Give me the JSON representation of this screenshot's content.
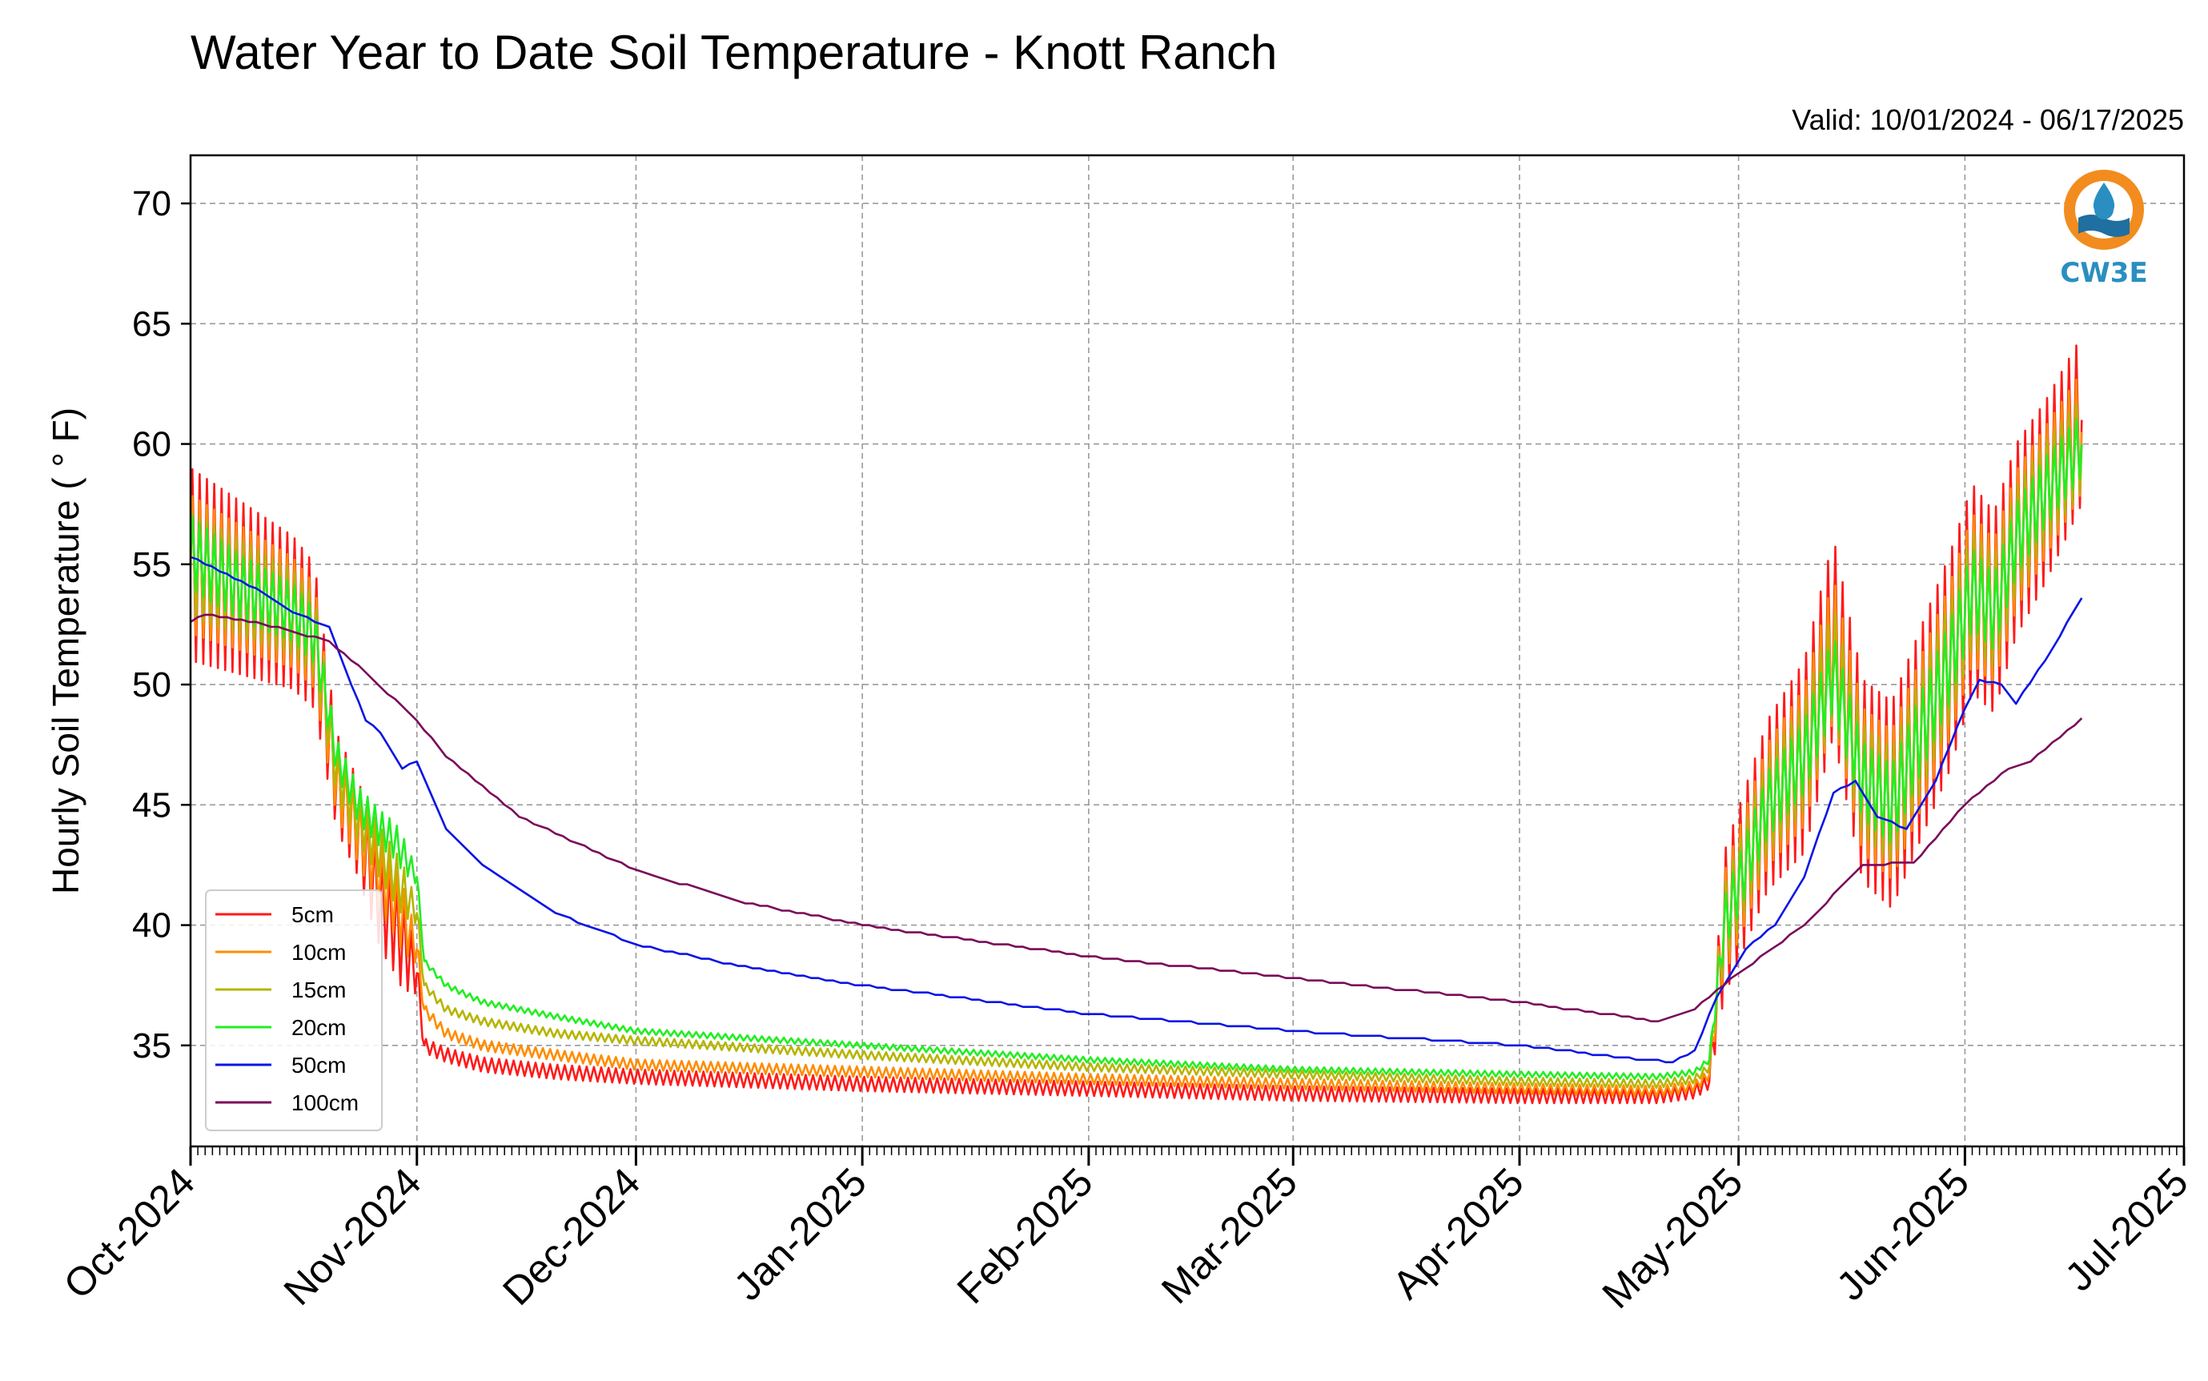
{
  "chart_data": {
    "type": "line",
    "title": "Water Year to Date Soil Temperature - Knott Ranch",
    "subtitle": "Valid: 10/01/2024 - 06/17/2025",
    "xlabel": "",
    "ylabel": "Hourly Soil Temperature ( ° F)",
    "ylim": [
      30.8,
      72
    ],
    "xlim": [
      "2024-10-01",
      "2025-07-01"
    ],
    "y_ticks": [
      35,
      40,
      45,
      50,
      55,
      60,
      65,
      70
    ],
    "x_ticks": [
      {
        "date": "2024-10-01",
        "label": "Oct-2024"
      },
      {
        "date": "2024-11-01",
        "label": "Nov-2024"
      },
      {
        "date": "2024-12-01",
        "label": "Dec-2024"
      },
      {
        "date": "2025-01-01",
        "label": "Jan-2025"
      },
      {
        "date": "2025-02-01",
        "label": "Feb-2025"
      },
      {
        "date": "2025-03-01",
        "label": "Mar-2025"
      },
      {
        "date": "2025-04-01",
        "label": "Apr-2025"
      },
      {
        "date": "2025-05-01",
        "label": "May-2025"
      },
      {
        "date": "2025-06-01",
        "label": "Jun-2025"
      },
      {
        "date": "2025-07-01",
        "label": "Jul-2025"
      }
    ],
    "grid": true,
    "legend_position": "lower-left",
    "logo_text": "CW3E",
    "series": [
      {
        "name": "5cm",
        "color": "#ff1a1a",
        "amp_scale": 1.0,
        "points": [
          [
            "2024-10-01",
            55
          ],
          [
            "2024-10-08",
            54
          ],
          [
            "2024-10-15",
            53
          ],
          [
            "2024-10-18",
            52
          ],
          [
            "2024-10-21",
            46
          ],
          [
            "2024-10-24",
            44
          ],
          [
            "2024-10-27",
            41
          ],
          [
            "2024-10-29",
            40
          ],
          [
            "2024-11-01",
            38
          ],
          [
            "2024-11-02",
            35
          ],
          [
            "2024-11-05",
            34.6
          ],
          [
            "2024-11-10",
            34.2
          ],
          [
            "2024-11-20",
            33.9
          ],
          [
            "2024-12-01",
            33.7
          ],
          [
            "2025-01-01",
            33.4
          ],
          [
            "2025-02-01",
            33.2
          ],
          [
            "2025-03-01",
            33.0
          ],
          [
            "2025-04-01",
            32.9
          ],
          [
            "2025-04-20",
            32.9
          ],
          [
            "2025-04-25",
            33.1
          ],
          [
            "2025-04-27",
            33.5
          ],
          [
            "2025-04-29",
            40
          ],
          [
            "2025-05-05",
            45
          ],
          [
            "2025-05-10",
            47
          ],
          [
            "2025-05-14",
            52
          ],
          [
            "2025-05-18",
            46
          ],
          [
            "2025-05-22",
            45
          ],
          [
            "2025-05-26",
            48
          ],
          [
            "2025-05-30",
            51
          ],
          [
            "2025-06-02",
            54
          ],
          [
            "2025-06-05",
            53
          ],
          [
            "2025-06-08",
            56
          ],
          [
            "2025-06-12",
            58
          ],
          [
            "2025-06-17",
            61
          ]
        ],
        "amp": [
          [
            "2024-10-01",
            8
          ],
          [
            "2024-10-18",
            6
          ],
          [
            "2024-10-21",
            4
          ],
          [
            "2024-10-30",
            4
          ],
          [
            "2024-11-02",
            0.6
          ],
          [
            "2025-04-27",
            0.6
          ],
          [
            "2025-04-29",
            6
          ],
          [
            "2025-05-10",
            8
          ],
          [
            "2025-05-30",
            9
          ],
          [
            "2025-06-17",
            7
          ]
        ]
      },
      {
        "name": "10cm",
        "color": "#ff8c00",
        "amp_scale": 0.72,
        "points": [
          [
            "2024-10-01",
            55
          ],
          [
            "2024-10-08",
            54
          ],
          [
            "2024-10-15",
            53
          ],
          [
            "2024-10-18",
            52
          ],
          [
            "2024-10-21",
            46
          ],
          [
            "2024-10-24",
            44
          ],
          [
            "2024-10-27",
            42
          ],
          [
            "2024-10-29",
            41
          ],
          [
            "2024-11-01",
            39
          ],
          [
            "2024-11-02",
            36.5
          ],
          [
            "2024-11-05",
            35.5
          ],
          [
            "2024-11-10",
            35
          ],
          [
            "2024-11-20",
            34.6
          ],
          [
            "2024-12-01",
            34.2
          ],
          [
            "2025-01-01",
            33.9
          ],
          [
            "2025-02-01",
            33.6
          ],
          [
            "2025-03-01",
            33.4
          ],
          [
            "2025-04-01",
            33.2
          ],
          [
            "2025-04-20",
            33.1
          ],
          [
            "2025-04-25",
            33.3
          ],
          [
            "2025-04-27",
            33.8
          ],
          [
            "2025-04-29",
            40
          ],
          [
            "2025-05-05",
            45
          ],
          [
            "2025-05-10",
            47
          ],
          [
            "2025-05-14",
            51.5
          ],
          [
            "2025-05-18",
            46
          ],
          [
            "2025-05-22",
            45
          ],
          [
            "2025-05-26",
            48
          ],
          [
            "2025-05-30",
            51
          ],
          [
            "2025-06-02",
            54
          ],
          [
            "2025-06-05",
            53
          ],
          [
            "2025-06-08",
            56
          ],
          [
            "2025-06-12",
            58
          ],
          [
            "2025-06-17",
            60.5
          ]
        ],
        "amp": [
          [
            "2024-10-01",
            8
          ],
          [
            "2024-10-18",
            6
          ],
          [
            "2024-10-21",
            4
          ],
          [
            "2024-10-30",
            4
          ],
          [
            "2024-11-02",
            0.6
          ],
          [
            "2025-04-27",
            0.6
          ],
          [
            "2025-04-29",
            6
          ],
          [
            "2025-05-10",
            8
          ],
          [
            "2025-05-30",
            9
          ],
          [
            "2025-06-17",
            7
          ]
        ]
      },
      {
        "name": "15cm",
        "color": "#b5b500",
        "amp_scale": 0.55,
        "points": [
          [
            "2024-10-01",
            55
          ],
          [
            "2024-10-08",
            54
          ],
          [
            "2024-10-15",
            53
          ],
          [
            "2024-10-18",
            52
          ],
          [
            "2024-10-21",
            46.5
          ],
          [
            "2024-10-24",
            44.5
          ],
          [
            "2024-10-27",
            43
          ],
          [
            "2024-10-29",
            42
          ],
          [
            "2024-11-01",
            40.5
          ],
          [
            "2024-11-02",
            37.5
          ],
          [
            "2024-11-05",
            36.5
          ],
          [
            "2024-11-10",
            36
          ],
          [
            "2024-11-20",
            35.5
          ],
          [
            "2024-12-01",
            35.2
          ],
          [
            "2025-01-01",
            34.6
          ],
          [
            "2025-02-01",
            34.1
          ],
          [
            "2025-03-01",
            33.8
          ],
          [
            "2025-04-01",
            33.5
          ],
          [
            "2025-04-20",
            33.4
          ],
          [
            "2025-04-25",
            33.6
          ],
          [
            "2025-04-27",
            34.1
          ],
          [
            "2025-04-29",
            40
          ],
          [
            "2025-05-05",
            45
          ],
          [
            "2025-05-10",
            47
          ],
          [
            "2025-05-14",
            51
          ],
          [
            "2025-05-18",
            46
          ],
          [
            "2025-05-22",
            45
          ],
          [
            "2025-05-26",
            48
          ],
          [
            "2025-05-30",
            51
          ],
          [
            "2025-06-02",
            54
          ],
          [
            "2025-06-05",
            53
          ],
          [
            "2025-06-08",
            56
          ],
          [
            "2025-06-12",
            58
          ],
          [
            "2025-06-17",
            60
          ]
        ],
        "amp": [
          [
            "2024-10-01",
            8
          ],
          [
            "2024-10-18",
            6
          ],
          [
            "2024-10-21",
            4
          ],
          [
            "2024-10-30",
            4
          ],
          [
            "2024-11-02",
            0.6
          ],
          [
            "2025-04-27",
            0.6
          ],
          [
            "2025-04-29",
            6
          ],
          [
            "2025-05-10",
            8
          ],
          [
            "2025-05-30",
            9
          ],
          [
            "2025-06-17",
            7
          ]
        ]
      },
      {
        "name": "20cm",
        "color": "#22ee22",
        "amp_scale": 0.38,
        "points": [
          [
            "2024-10-01",
            55.5
          ],
          [
            "2024-10-08",
            54
          ],
          [
            "2024-10-15",
            53
          ],
          [
            "2024-10-18",
            52
          ],
          [
            "2024-10-21",
            47
          ],
          [
            "2024-10-24",
            45
          ],
          [
            "2024-10-27",
            44
          ],
          [
            "2024-10-29",
            43.5
          ],
          [
            "2024-11-01",
            42
          ],
          [
            "2024-11-02",
            38.5
          ],
          [
            "2024-11-05",
            37.5
          ],
          [
            "2024-11-10",
            36.8
          ],
          [
            "2024-11-20",
            36.2
          ],
          [
            "2024-12-01",
            35.6
          ],
          [
            "2025-01-01",
            35
          ],
          [
            "2025-02-01",
            34.4
          ],
          [
            "2025-03-01",
            34
          ],
          [
            "2025-04-01",
            33.8
          ],
          [
            "2025-04-20",
            33.7
          ],
          [
            "2025-04-25",
            33.9
          ],
          [
            "2025-04-27",
            34.4
          ],
          [
            "2025-04-29",
            40
          ],
          [
            "2025-05-05",
            45
          ],
          [
            "2025-05-10",
            47
          ],
          [
            "2025-05-14",
            50.5
          ],
          [
            "2025-05-18",
            46
          ],
          [
            "2025-05-22",
            45
          ],
          [
            "2025-05-26",
            48
          ],
          [
            "2025-05-30",
            51
          ],
          [
            "2025-06-02",
            54
          ],
          [
            "2025-06-05",
            53
          ],
          [
            "2025-06-08",
            56
          ],
          [
            "2025-06-12",
            58
          ],
          [
            "2025-06-17",
            60
          ]
        ],
        "amp": [
          [
            "2024-10-01",
            8
          ],
          [
            "2024-10-18",
            6
          ],
          [
            "2024-10-21",
            4
          ],
          [
            "2024-10-30",
            4
          ],
          [
            "2024-11-02",
            0.6
          ],
          [
            "2025-04-27",
            0.6
          ],
          [
            "2025-04-29",
            6
          ],
          [
            "2025-05-10",
            8
          ],
          [
            "2025-05-30",
            9
          ],
          [
            "2025-06-17",
            7
          ]
        ]
      },
      {
        "name": "50cm",
        "color": "#0a14e6",
        "amp_scale": 0.0,
        "points": [
          [
            "2024-10-01",
            55.3
          ],
          [
            "2024-10-10",
            54
          ],
          [
            "2024-10-15",
            53
          ],
          [
            "2024-10-20",
            52.4
          ],
          [
            "2024-10-23",
            50
          ],
          [
            "2024-10-25",
            48.5
          ],
          [
            "2024-10-27",
            48
          ],
          [
            "2024-10-30",
            46.5
          ],
          [
            "2024-11-01",
            46.8
          ],
          [
            "2024-11-05",
            44
          ],
          [
            "2024-11-10",
            42.5
          ],
          [
            "2024-11-20",
            40.5
          ],
          [
            "2024-12-01",
            39.2
          ],
          [
            "2024-12-15",
            38.3
          ],
          [
            "2025-01-01",
            37.5
          ],
          [
            "2025-02-01",
            36.3
          ],
          [
            "2025-03-01",
            35.6
          ],
          [
            "2025-04-01",
            35
          ],
          [
            "2025-04-15",
            34.5
          ],
          [
            "2025-04-22",
            34.3
          ],
          [
            "2025-04-25",
            34.8
          ],
          [
            "2025-04-28",
            37
          ],
          [
            "2025-05-02",
            39
          ],
          [
            "2025-05-06",
            40
          ],
          [
            "2025-05-10",
            42
          ],
          [
            "2025-05-14",
            45.5
          ],
          [
            "2025-05-17",
            46
          ],
          [
            "2025-05-20",
            44.5
          ],
          [
            "2025-05-24",
            44
          ],
          [
            "2025-05-28",
            46
          ],
          [
            "2025-06-01",
            49
          ],
          [
            "2025-06-03",
            50.2
          ],
          [
            "2025-06-06",
            50
          ],
          [
            "2025-06-08",
            49.2
          ],
          [
            "2025-06-12",
            51
          ],
          [
            "2025-06-17",
            53.6
          ]
        ]
      },
      {
        "name": "100cm",
        "color": "#7a0a5a",
        "amp_scale": 0.0,
        "points": [
          [
            "2024-10-01",
            52.6
          ],
          [
            "2024-10-03",
            52.9
          ],
          [
            "2024-10-10",
            52.6
          ],
          [
            "2024-10-20",
            51.8
          ],
          [
            "2024-10-25",
            50.5
          ],
          [
            "2024-11-01",
            48.5
          ],
          [
            "2024-11-05",
            47
          ],
          [
            "2024-11-15",
            44.5
          ],
          [
            "2024-12-01",
            42.3
          ],
          [
            "2024-12-15",
            41
          ],
          [
            "2025-01-01",
            40
          ],
          [
            "2025-02-01",
            38.7
          ],
          [
            "2025-03-01",
            37.8
          ],
          [
            "2025-04-01",
            36.8
          ],
          [
            "2025-04-20",
            36
          ],
          [
            "2025-04-25",
            36.5
          ],
          [
            "2025-05-01",
            38
          ],
          [
            "2025-05-10",
            40
          ],
          [
            "2025-05-18",
            42.5
          ],
          [
            "2025-05-25",
            42.6
          ],
          [
            "2025-06-01",
            45
          ],
          [
            "2025-06-07",
            46.5
          ],
          [
            "2025-06-10",
            46.8
          ],
          [
            "2025-06-17",
            48.6
          ]
        ]
      }
    ]
  }
}
